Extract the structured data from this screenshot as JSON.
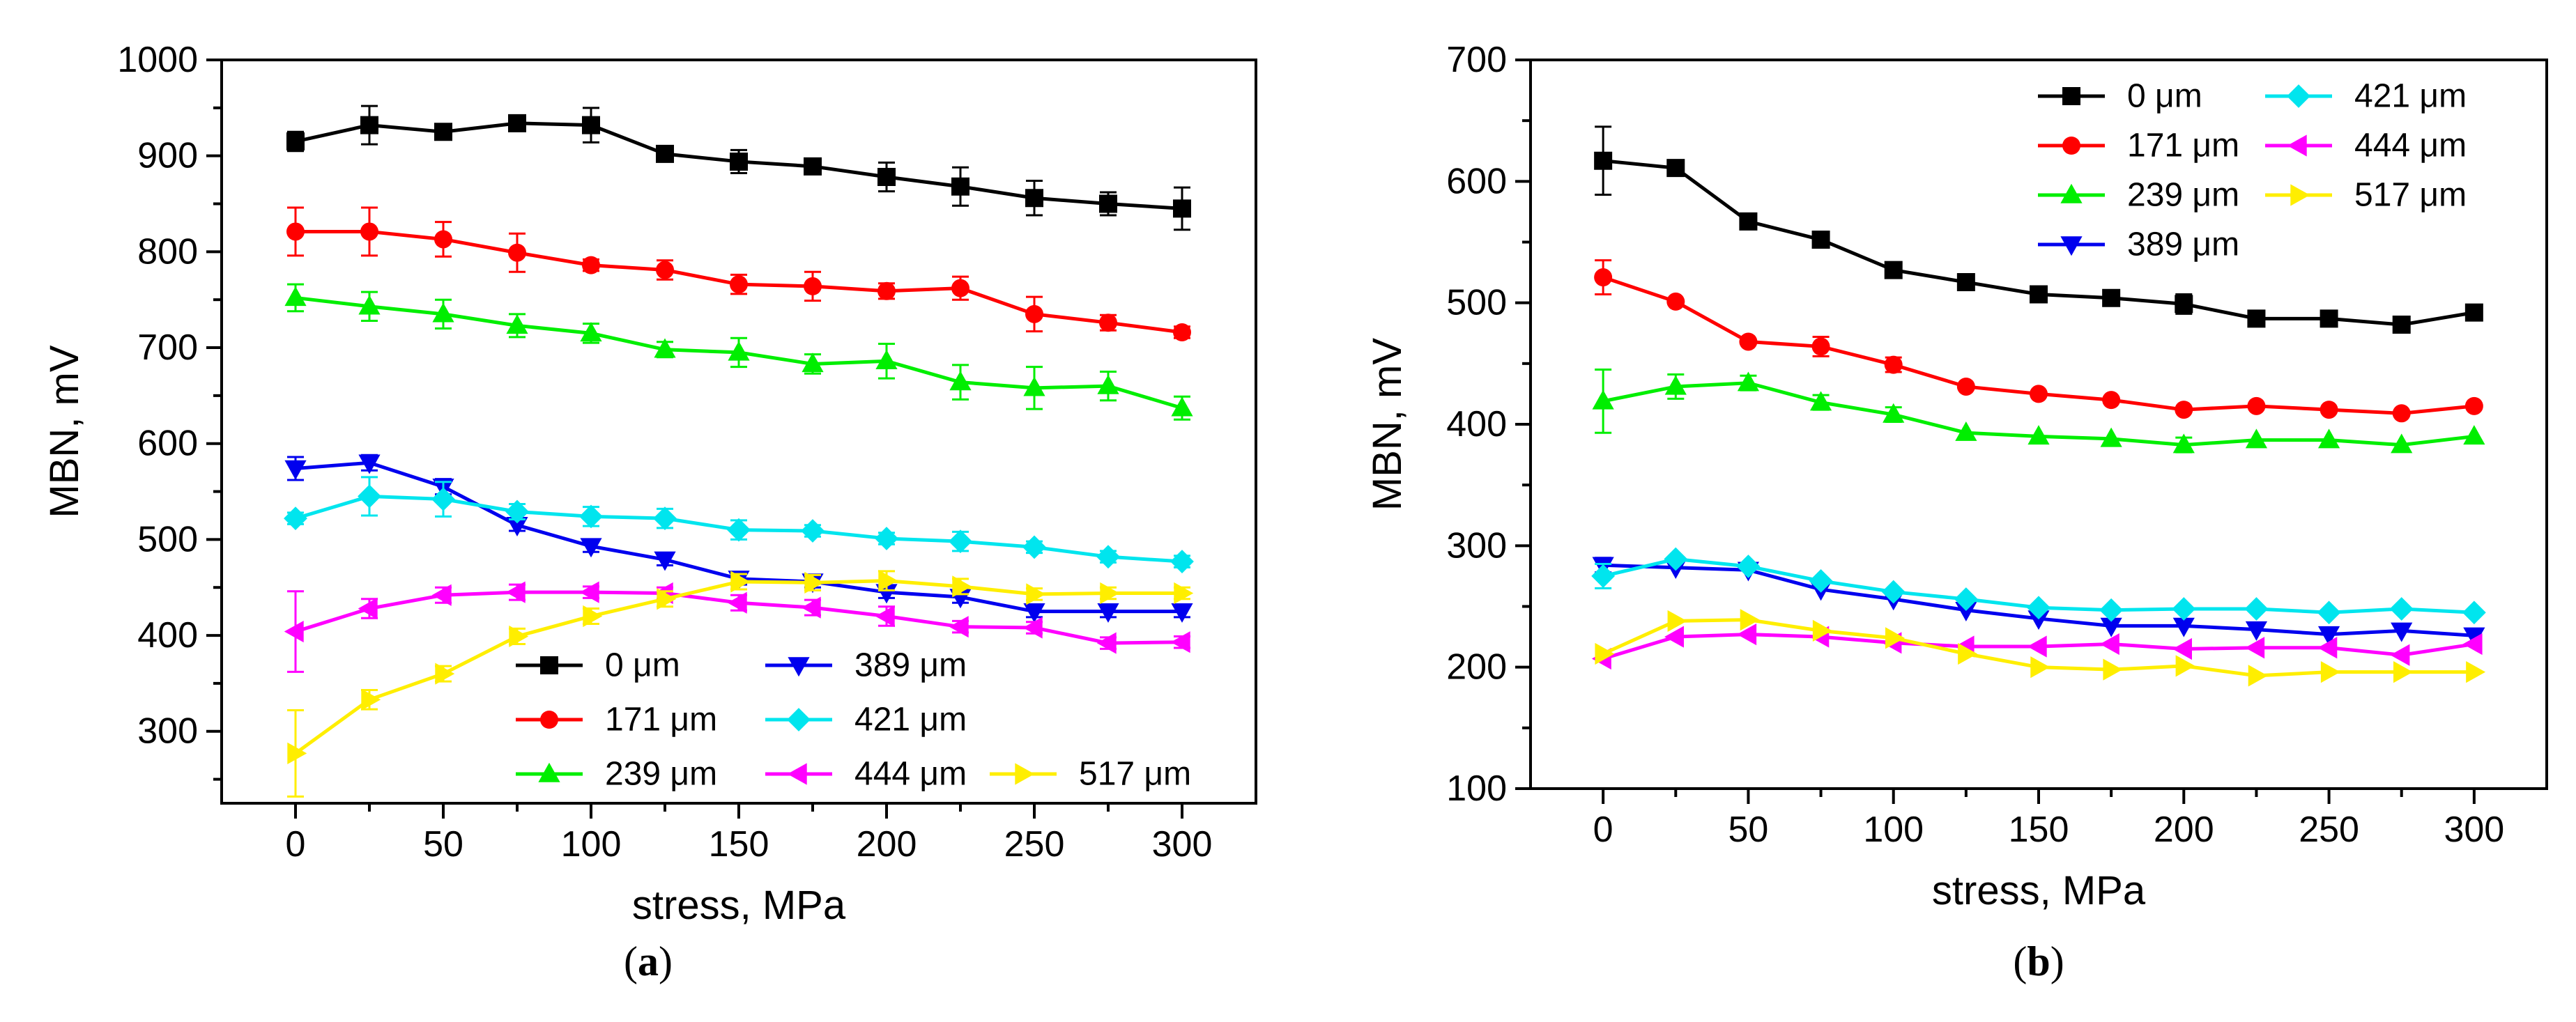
{
  "figure": {
    "micro_symbol": "μ"
  },
  "chart_data": [
    {
      "panel": "(a)",
      "panel_label_open": "(",
      "panel_label_letter": "a",
      "panel_label_close": ")",
      "type": "line",
      "xlabel": "stress, MPa",
      "ylabel": "MBN, mV",
      "xlim": [
        -25,
        325
      ],
      "ylim": [
        225,
        1000
      ],
      "xticks": [
        0,
        50,
        100,
        150,
        200,
        250,
        300
      ],
      "yticks": [
        300,
        400,
        500,
        600,
        700,
        800,
        900,
        1000
      ],
      "x": [
        0,
        25,
        50,
        75,
        100,
        125,
        150,
        175,
        200,
        225,
        250,
        275,
        300
      ],
      "legend_position": "bottom-right",
      "series": [
        {
          "name": "0 μm",
          "color": "#000000",
          "marker": "square",
          "values": [
            915,
            932,
            925,
            934,
            932,
            902,
            894,
            889,
            878,
            868,
            856,
            850,
            845
          ],
          "errors": [
            10,
            20,
            6,
            6,
            18,
            6,
            12,
            6,
            15,
            20,
            18,
            12,
            22
          ]
        },
        {
          "name": "171 μm",
          "color": "#ff0000",
          "marker": "circle",
          "values": [
            821,
            821,
            813,
            799,
            786,
            781,
            766,
            764,
            759,
            762,
            735,
            726,
            716
          ],
          "errors": [
            25,
            25,
            18,
            20,
            6,
            10,
            10,
            15,
            8,
            12,
            18,
            8,
            6
          ]
        },
        {
          "name": "239 μm",
          "color": "#00ee00",
          "marker": "triangle-up",
          "values": [
            752,
            743,
            735,
            723,
            715,
            698,
            695,
            683,
            686,
            664,
            658,
            660,
            637
          ],
          "errors": [
            14,
            15,
            15,
            12,
            10,
            8,
            15,
            10,
            18,
            18,
            22,
            15,
            12
          ]
        },
        {
          "name": "389 μm",
          "color": "#0000ee",
          "marker": "triangle-down",
          "values": [
            574,
            580,
            555,
            515,
            493,
            479,
            459,
            456,
            445,
            440,
            425,
            425,
            425
          ],
          "errors": [
            12,
            8,
            8,
            6,
            6,
            6,
            6,
            6,
            6,
            6,
            6,
            6,
            6
          ]
        },
        {
          "name": "421 μm",
          "color": "#00e5ee",
          "marker": "diamond",
          "values": [
            522,
            545,
            542,
            529,
            524,
            522,
            510,
            509,
            501,
            498,
            492,
            482,
            477
          ],
          "errors": [
            6,
            20,
            18,
            8,
            10,
            10,
            10,
            6,
            6,
            10,
            6,
            6,
            6
          ]
        },
        {
          "name": "444 μm",
          "color": "#ff00ff",
          "marker": "triangle-left",
          "values": [
            404,
            428,
            442,
            445,
            445,
            444,
            434,
            429,
            420,
            409,
            408,
            392,
            393
          ],
          "errors": [
            42,
            10,
            8,
            8,
            6,
            6,
            8,
            8,
            10,
            6,
            6,
            6,
            6
          ]
        },
        {
          "name": "517 μm",
          "color": "#ffee00",
          "marker": "triangle-right",
          "values": [
            277,
            333,
            360,
            399,
            420,
            438,
            456,
            455,
            457,
            451,
            443,
            444,
            444
          ],
          "errors": [
            45,
            10,
            8,
            8,
            8,
            8,
            8,
            8,
            10,
            8,
            6,
            6,
            6
          ]
        }
      ]
    },
    {
      "panel": "(b)",
      "panel_label_open": "(",
      "panel_label_letter": "b",
      "panel_label_close": ")",
      "type": "line",
      "xlabel": "stress, MPa",
      "ylabel": "MBN, mV",
      "xlim": [
        -25,
        325
      ],
      "ylim": [
        100,
        700
      ],
      "xticks": [
        0,
        50,
        100,
        150,
        200,
        250,
        300
      ],
      "yticks": [
        100,
        200,
        300,
        400,
        500,
        600,
        700
      ],
      "x": [
        0,
        25,
        50,
        75,
        100,
        125,
        150,
        175,
        200,
        225,
        250,
        275,
        300
      ],
      "legend_position": "top-right",
      "series": [
        {
          "name": "0 μm",
          "color": "#000000",
          "marker": "square",
          "values": [
            617,
            611,
            567,
            552,
            527,
            517,
            507,
            504,
            499,
            487,
            487,
            482,
            492
          ],
          "errors": [
            28,
            4,
            4,
            4,
            4,
            4,
            6,
            6,
            8,
            4,
            4,
            6,
            6
          ]
        },
        {
          "name": "171 μm",
          "color": "#ff0000",
          "marker": "circle",
          "values": [
            521,
            501,
            468,
            464,
            449,
            431,
            425,
            420,
            412,
            415,
            412,
            409,
            415
          ],
          "errors": [
            14,
            4,
            4,
            8,
            6,
            4,
            4,
            4,
            4,
            4,
            4,
            4,
            4
          ]
        },
        {
          "name": "239 μm",
          "color": "#00ee00",
          "marker": "triangle-up",
          "values": [
            419,
            431,
            434,
            418,
            408,
            393,
            390,
            388,
            383,
            387,
            387,
            383,
            390
          ],
          "errors": [
            26,
            10,
            6,
            6,
            6,
            4,
            4,
            4,
            6,
            4,
            4,
            4,
            4
          ]
        },
        {
          "name": "389 μm",
          "color": "#0000ee",
          "marker": "triangle-down",
          "values": [
            284,
            282,
            280,
            264,
            256,
            247,
            240,
            234,
            234,
            231,
            227,
            230,
            226
          ],
          "errors": [
            6,
            4,
            4,
            4,
            4,
            4,
            4,
            4,
            4,
            4,
            4,
            4,
            4
          ]
        },
        {
          "name": "421 μm",
          "color": "#00e5ee",
          "marker": "diamond",
          "values": [
            275,
            289,
            283,
            271,
            262,
            256,
            249,
            247,
            248,
            248,
            245,
            248,
            245
          ],
          "errors": [
            10,
            4,
            4,
            4,
            4,
            4,
            4,
            4,
            4,
            4,
            4,
            4,
            4
          ]
        },
        {
          "name": "444 μm",
          "color": "#ff00ff",
          "marker": "triangle-left",
          "values": [
            207,
            225,
            227,
            225,
            220,
            217,
            217,
            219,
            215,
            216,
            216,
            210,
            219
          ],
          "errors": [
            4,
            4,
            4,
            4,
            4,
            4,
            4,
            4,
            4,
            4,
            4,
            4,
            4
          ]
        },
        {
          "name": "517 μm",
          "color": "#ffee00",
          "marker": "triangle-right",
          "values": [
            211,
            238,
            239,
            230,
            224,
            211,
            200,
            198,
            201,
            193,
            196,
            196,
            196
          ],
          "errors": [
            4,
            4,
            4,
            4,
            4,
            4,
            4,
            4,
            4,
            4,
            4,
            4,
            4
          ]
        }
      ]
    }
  ]
}
